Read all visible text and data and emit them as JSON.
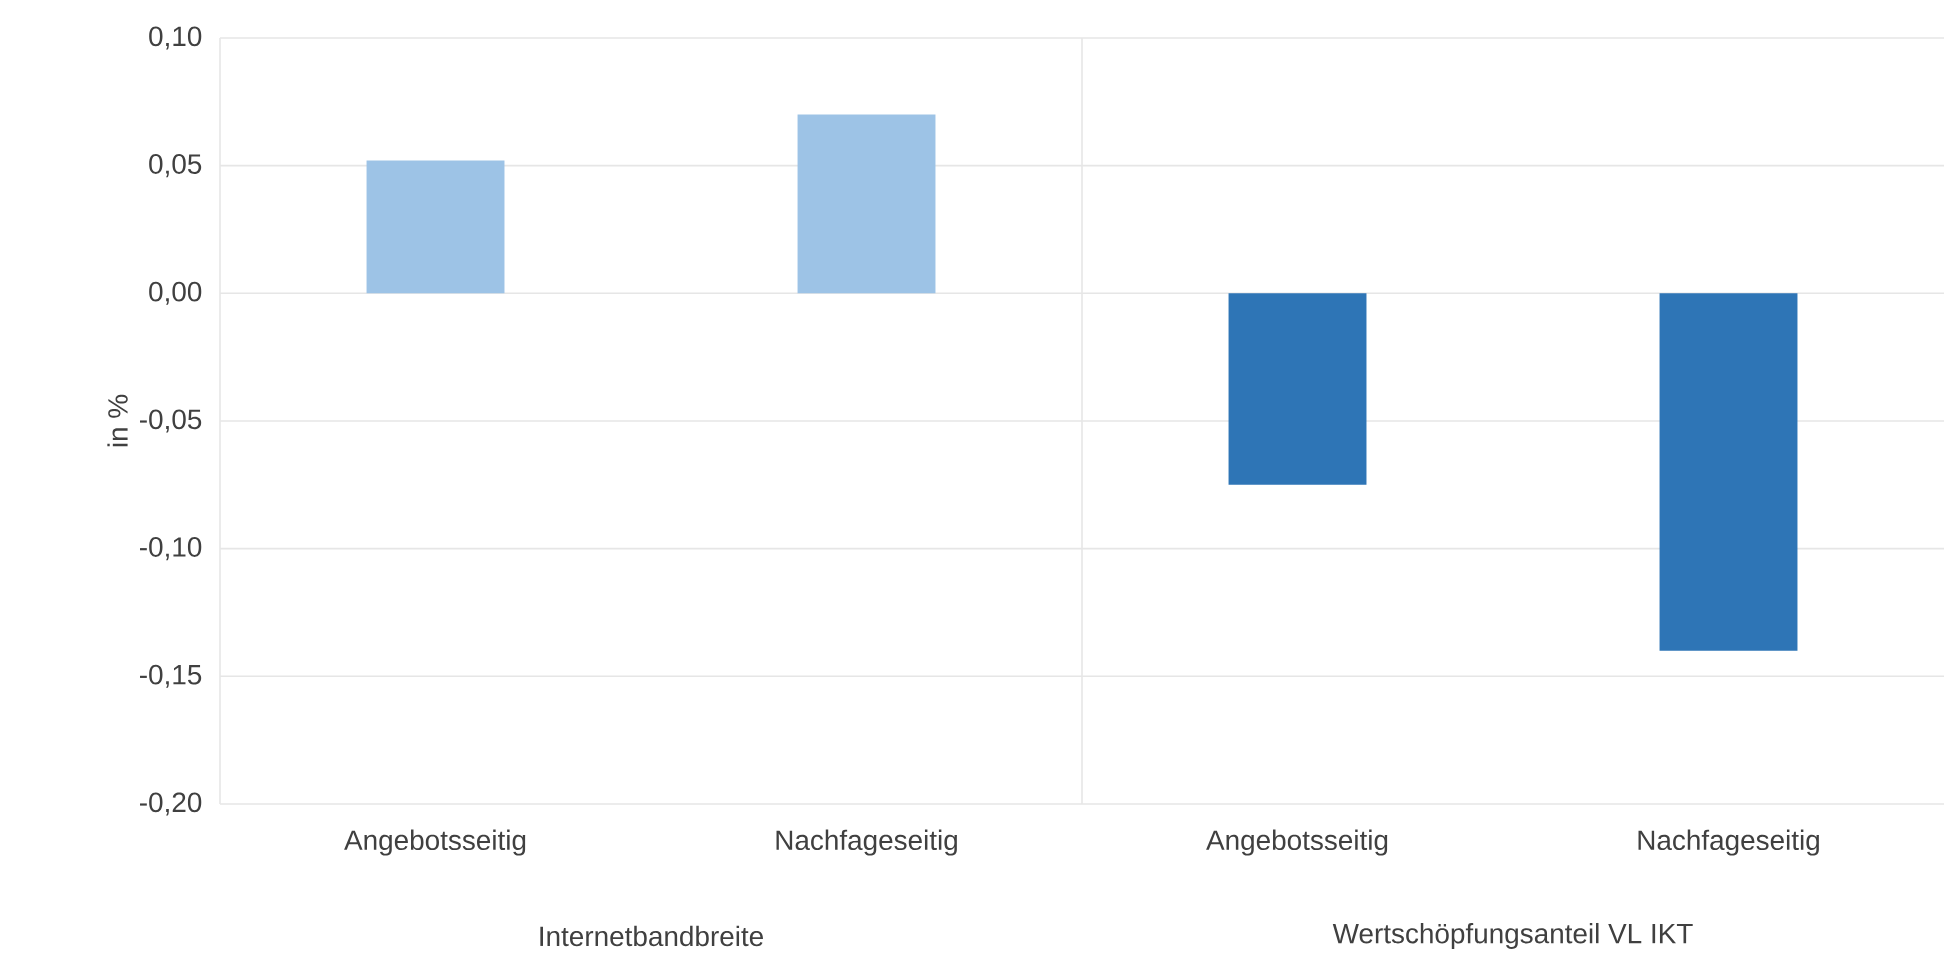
{
  "chart_data": {
    "type": "bar",
    "ylabel": "in %",
    "categories": [
      "Angebotsseitig",
      "Nachfageseitig",
      "Angebotsseitig",
      "Nachfageseitig"
    ],
    "values": [
      0.052,
      0.07,
      -0.075,
      -0.14
    ],
    "colors": [
      "#9dc3e6",
      "#9dc3e6",
      "#2e75b6",
      "#2e75b6"
    ],
    "ylim": [
      -0.2,
      0.1
    ],
    "yticks": [
      {
        "value": -0.2,
        "label": "-0,20"
      },
      {
        "value": -0.15,
        "label": "-0,15"
      },
      {
        "value": -0.1,
        "label": "-0,10"
      },
      {
        "value": -0.05,
        "label": "-0,05"
      },
      {
        "value": 0,
        "label": "0,00"
      },
      {
        "value": 0.05,
        "label": "0,05"
      },
      {
        "value": 0.1,
        "label": "0,10"
      }
    ],
    "grid": "y",
    "annotations": [
      "Internetbandbreite",
      "Wertschöpfungsanteil VL IKT"
    ]
  }
}
